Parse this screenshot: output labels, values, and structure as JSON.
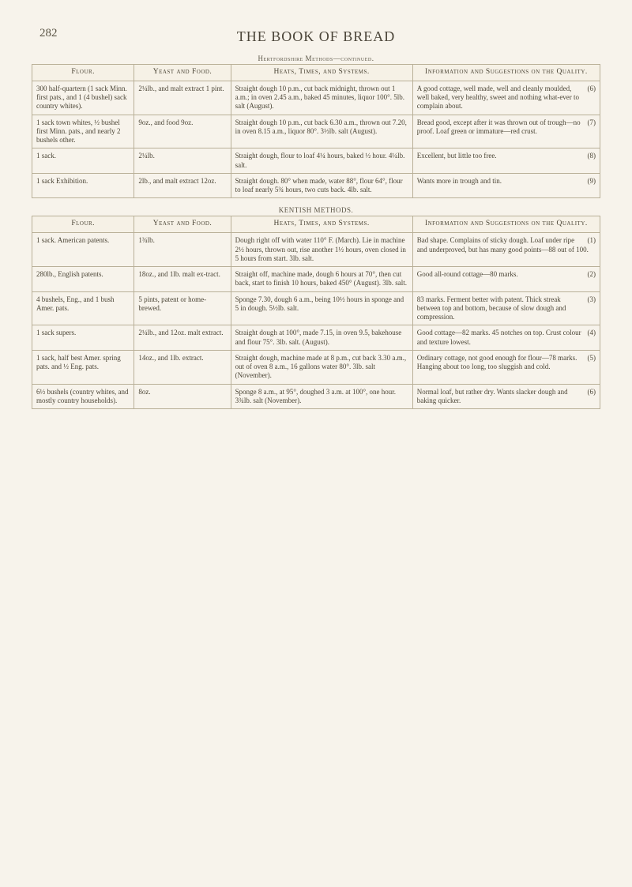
{
  "page_number": "282",
  "running_head": "THE BOOK OF BREAD",
  "subheads": {
    "hertfordshire": "Hertfordshire Methods—continued.",
    "kentish": "KENTISH METHODS."
  },
  "colheads": {
    "flour": "Flour.",
    "yeast": "Yeast and Food.",
    "heats": "Heats, Times, and Systems.",
    "info": "Information and Suggestions on the Quality."
  },
  "hertfordshire_rows": [
    {
      "flour": "300 half-quartern (1 sack Minn. first pats., and 1 (4 bushel) sack country whites).",
      "yeast": "2¼lb., and malt extract 1 pint.",
      "heats": "Straight dough 10 p.m., cut back midnight, thrown out 1 a.m.; in oven 2.45 a.m., baked 45 minutes, liquor 100°.  5lb. salt (August).",
      "info": "A good cottage, well made, well and cleanly moulded, well baked, very healthy, sweet and nothing what-ever to complain about.",
      "idx": "(6)"
    },
    {
      "flour": "1 sack town whites, ½ bushel first Minn. pats., and nearly 2 bushels other.",
      "yeast": "9oz., and food 9oz.",
      "heats": "Straight dough 10 p.m., cut back 6.30 a.m., thrown out 7.20, in oven 8.15 a.m., liquor 80°.  3½lb. salt (August).",
      "info": "Bread good, except after it was thrown out of trough—no proof.  Loaf green or immature—red crust.",
      "idx": "(7)"
    },
    {
      "flour": "1 sack.",
      "yeast": "2¼lb.",
      "heats": "Straight dough, flour to loaf 4¼ hours, baked ½ hour.  4¼lb. salt.",
      "info": "Excellent, but little too free.",
      "idx": "(8)"
    },
    {
      "flour": "1 sack Exhibition.",
      "yeast": "2lb., and malt extract 12oz.",
      "heats": "Straight dough. 80° when made, water 88°, flour 64°, flour to loaf nearly 5¾ hours, two cuts back.  4lb. salt.",
      "info": "Wants more in trough and tin.",
      "idx": "(9)"
    }
  ],
  "kentish_rows": [
    {
      "flour": "1 sack. American patents.",
      "yeast": "1¾lb.",
      "heats": "Dough right off with water 110° F. (March).  Lie in machine 2½ hours, thrown out, rise another 1½ hours, oven closed in 5 hours from start.  3lb. salt.",
      "info": "Bad shape.  Complains of sticky dough.  Loaf under ripe and underproved, but has many good points—88 out of 100.",
      "idx": "(1)"
    },
    {
      "flour": "280lb., English patents.",
      "yeast": "18oz., and 1lb. malt ex-tract.",
      "heats": "Straight off, machine made, dough 6 hours at 70°, then cut back, start to finish 10 hours, baked 450° (August).  3lb. salt.",
      "info": "Good all-round cottage—80 marks.",
      "idx": "(2)"
    },
    {
      "flour": "4 bushels, Eng., and 1 bush Amer. pats.",
      "yeast": "5 pints, patent or home-brewed.",
      "heats": "Sponge 7.30, dough 6 a.m., being 10½ hours in sponge and 5 in dough.  5½lb. salt.",
      "info": "83 marks.  Ferment better with patent.  Thick streak between top and bottom, because of slow dough and compression.",
      "idx": "(3)"
    },
    {
      "flour": "1 sack supers.",
      "yeast": "2¼lb., and 12oz. malt extract.",
      "heats": "Straight dough at 100°, made 7.15, in oven 9.5, bakehouse and flour 75°.  3lb. salt. (August).",
      "info": "Good cottage—82 marks.  45 notches on top.  Crust colour and texture lowest.",
      "idx": "(4)"
    },
    {
      "flour": "1 sack, half best Amer. spring pats. and ½ Eng. pats.",
      "yeast": "14oz., and 1lb. extract.",
      "heats": "Straight dough, machine made at 8 p.m., cut back 3.30 a.m., out of oven 8 a.m., 16 gallons water 80°.  3lb. salt (November).",
      "info": "Ordinary cottage, not good enough for flour—78 marks.  Hanging about too long, too sluggish and cold.",
      "idx": "(5)"
    },
    {
      "flour": "6½ bushels (country whites, and mostly country households).",
      "yeast": "8oz.",
      "heats": "Sponge 8 a.m., at 95°, doughed 3 a.m. at 100°, one hour.  3¾lb. salt (November).",
      "info": "Normal loaf, but rather dry.  Wants slacker dough and baking quicker.",
      "idx": "(6)"
    }
  ]
}
